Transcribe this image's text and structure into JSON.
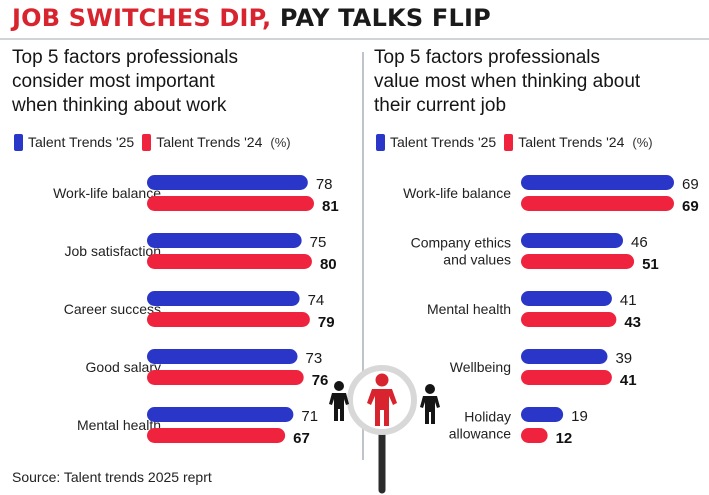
{
  "headline": {
    "part1": "JOB SWITCHES DIP,",
    "part2": " PAY TALKS FLIP"
  },
  "colors": {
    "series25": "#2a36c8",
    "series24": "#f0233f",
    "accent": "#d8242e"
  },
  "icons": [
    "magnifier-icon",
    "person-icon"
  ],
  "source": "Source: Talent trends 2025 reprt",
  "chart_data": [
    {
      "type": "bar",
      "orientation": "horizontal",
      "title_lines": [
        "Top 5 factors professionals",
        "consider most important",
        "when thinking about work"
      ],
      "unit": "(%)",
      "categories": [
        [
          "Work-life balance"
        ],
        [
          "Job satisfaction"
        ],
        [
          "Career success"
        ],
        [
          "Good salary"
        ],
        [
          "Mental health"
        ]
      ],
      "series": [
        {
          "name": "Talent Trends '25",
          "values": [
            78,
            75,
            74,
            73,
            71
          ]
        },
        {
          "name": "Talent Trends '24",
          "values": [
            81,
            80,
            79,
            76,
            67
          ]
        }
      ],
      "legend": "top"
    },
    {
      "type": "bar",
      "orientation": "horizontal",
      "title_lines": [
        "Top 5 factors professionals",
        "value most when thinking about",
        "their current job"
      ],
      "unit": "(%)",
      "categories": [
        [
          "Work-life balance"
        ],
        [
          "Company ethics",
          "and values"
        ],
        [
          "Mental health"
        ],
        [
          "Wellbeing"
        ],
        [
          "Holiday",
          "allowance"
        ]
      ],
      "series": [
        {
          "name": "Talent Trends '25",
          "values": [
            69,
            46,
            41,
            39,
            19
          ]
        },
        {
          "name": "Talent Trends '24",
          "values": [
            69,
            51,
            43,
            41,
            12
          ]
        }
      ],
      "legend": "top"
    }
  ]
}
